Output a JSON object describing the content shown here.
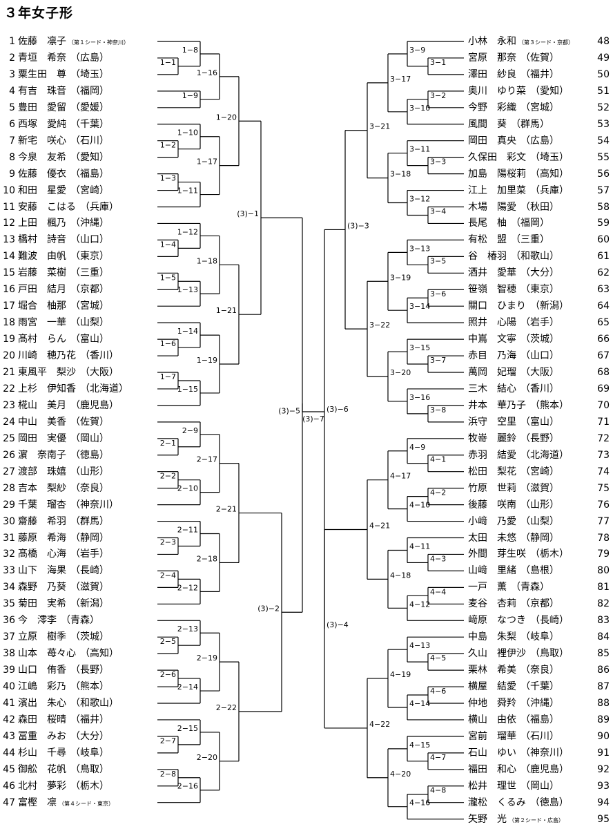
{
  "title": "３年女子形",
  "left": [
    {
      "num": "1",
      "name": "佐藤　凛子",
      "note": "（第１シード・神奈川）"
    },
    {
      "num": "2",
      "name": "青垣　希奈",
      "pref": "（広島）"
    },
    {
      "num": "3",
      "name": "粟生田　尊",
      "pref": "（埼玉）"
    },
    {
      "num": "4",
      "name": "有吉　珠音",
      "pref": "（福岡）"
    },
    {
      "num": "5",
      "name": "豊田　愛留",
      "pref": "（愛媛）"
    },
    {
      "num": "6",
      "name": "西塚　愛純",
      "pref": "（千葉）"
    },
    {
      "num": "7",
      "name": "新宅　咲心",
      "pref": "（石川）"
    },
    {
      "num": "8",
      "name": "今泉　友希",
      "pref": "（愛知）"
    },
    {
      "num": "9",
      "name": "佐藤　優衣",
      "pref": "（福島）"
    },
    {
      "num": "10",
      "name": "和田　星愛",
      "pref": "（宮崎）"
    },
    {
      "num": "11",
      "name": "安藤　こはる",
      "pref": "（兵庫）"
    },
    {
      "num": "12",
      "name": "上田　楓乃",
      "pref": "（沖縄）"
    },
    {
      "num": "13",
      "name": "橋村　詩音",
      "pref": "（山口）"
    },
    {
      "num": "14",
      "name": "難波　由帆",
      "pref": "（東京）"
    },
    {
      "num": "15",
      "name": "岩藤　菜樹",
      "pref": "（三重）"
    },
    {
      "num": "16",
      "name": "戸田　結月",
      "pref": "（京都）"
    },
    {
      "num": "17",
      "name": "堀合　柚那",
      "pref": "（宮城）"
    },
    {
      "num": "18",
      "name": "雨宮　一華",
      "pref": "（山梨）"
    },
    {
      "num": "19",
      "name": "髙村　らん",
      "pref": "（富山）"
    },
    {
      "num": "20",
      "name": "川崎　穂乃花",
      "pref": "（香川）"
    },
    {
      "num": "21",
      "name": "東風平　梨沙",
      "pref": "（大阪）"
    },
    {
      "num": "22",
      "name": "上杉　伊知香",
      "pref": "（北海道）"
    },
    {
      "num": "23",
      "name": "椛山　美月",
      "pref": "（鹿児島）"
    },
    {
      "num": "24",
      "name": "中山　美香",
      "pref": "（佐賀）"
    },
    {
      "num": "25",
      "name": "岡田　実優",
      "pref": "（岡山）"
    },
    {
      "num": "26",
      "name": "濵　奈南子",
      "pref": "（徳島）"
    },
    {
      "num": "27",
      "name": "渡部　珠嬉",
      "pref": "（山形）"
    },
    {
      "num": "28",
      "name": "吉本　梨紗",
      "pref": "（奈良）"
    },
    {
      "num": "29",
      "name": "千葉　瑠杏",
      "pref": "（神奈川）"
    },
    {
      "num": "30",
      "name": "齋藤　希羽",
      "pref": "（群馬）"
    },
    {
      "num": "31",
      "name": "藤原　希海",
      "pref": "（静岡）"
    },
    {
      "num": "32",
      "name": "髙橋　心海",
      "pref": "（岩手）"
    },
    {
      "num": "33",
      "name": "山下　海果",
      "pref": "（長崎）"
    },
    {
      "num": "34",
      "name": "森野　乃葵",
      "pref": "（滋賀）"
    },
    {
      "num": "35",
      "name": "菊田　実希",
      "pref": "（新潟）"
    },
    {
      "num": "36",
      "name": "今　澪李",
      "pref": "（青森）"
    },
    {
      "num": "37",
      "name": "立原　樹季",
      "pref": "（茨城）"
    },
    {
      "num": "38",
      "name": "山本　苺々心",
      "pref": "（高知）"
    },
    {
      "num": "39",
      "name": "山口　侑香",
      "pref": "（長野）"
    },
    {
      "num": "40",
      "name": "江嶋　彩乃",
      "pref": "（熊本）"
    },
    {
      "num": "41",
      "name": "濱出　朱心",
      "pref": "（和歌山）"
    },
    {
      "num": "42",
      "name": "森田　桜晴",
      "pref": "（福井）"
    },
    {
      "num": "43",
      "name": "冨重　みお",
      "pref": "（大分）"
    },
    {
      "num": "44",
      "name": "杉山　千尋",
      "pref": "（岐阜）"
    },
    {
      "num": "45",
      "name": "御舩　花帆",
      "pref": "（鳥取）"
    },
    {
      "num": "46",
      "name": "北村　夢彩",
      "pref": "（栃木）"
    },
    {
      "num": "47",
      "name": "富樫　凛",
      "note": "（第４シード・東京）"
    }
  ],
  "right": [
    {
      "num": "48",
      "name": "小林　永和",
      "note": "（第３シード・京都）"
    },
    {
      "num": "49",
      "name": "宮原　那奈",
      "pref": "（佐賀）"
    },
    {
      "num": "50",
      "name": "澤田　紗良",
      "pref": "（福井）"
    },
    {
      "num": "51",
      "name": "奥川　ゆり菜",
      "pref": "（愛知）"
    },
    {
      "num": "52",
      "name": "今野　彩織",
      "pref": "（宮城）"
    },
    {
      "num": "53",
      "name": "風間　葵",
      "pref": "（群馬）"
    },
    {
      "num": "54",
      "name": "岡田　真央",
      "pref": "（広島）"
    },
    {
      "num": "55",
      "name": "久保田　彩文",
      "pref": "（埼玉）"
    },
    {
      "num": "56",
      "name": "加島　陽桜莉",
      "pref": "（高知）"
    },
    {
      "num": "57",
      "name": "江上　加里菜",
      "pref": "（兵庫）"
    },
    {
      "num": "58",
      "name": "木場　陽愛",
      "pref": "（秋田）"
    },
    {
      "num": "59",
      "name": "長尾　柚",
      "pref": "（福岡）"
    },
    {
      "num": "60",
      "name": "有松　盟",
      "pref": "（三重）"
    },
    {
      "num": "61",
      "name": "谷　椿羽",
      "pref": "（和歌山）"
    },
    {
      "num": "62",
      "name": "酒井　愛華",
      "pref": "（大分）"
    },
    {
      "num": "63",
      "name": "笹嶺　智穂",
      "pref": "（東京）"
    },
    {
      "num": "64",
      "name": "關口　ひまり",
      "pref": "（新潟）"
    },
    {
      "num": "65",
      "name": "照井　心陽",
      "pref": "（岩手）"
    },
    {
      "num": "66",
      "name": "中嶌　文寧",
      "pref": "（茨城）"
    },
    {
      "num": "67",
      "name": "赤目　乃海",
      "pref": "（山口）"
    },
    {
      "num": "68",
      "name": "萬岡　妃瑠",
      "pref": "（大阪）"
    },
    {
      "num": "69",
      "name": "三木　結心",
      "pref": "（香川）"
    },
    {
      "num": "70",
      "name": "井本　華乃子",
      "pref": "（熊本）"
    },
    {
      "num": "71",
      "name": "浜守　空里",
      "pref": "（富山）"
    },
    {
      "num": "72",
      "name": "牧嵜　麗鈴",
      "pref": "（長野）"
    },
    {
      "num": "73",
      "name": "赤羽　結愛",
      "pref": "（北海道）"
    },
    {
      "num": "74",
      "name": "松田　梨花",
      "pref": "（宮崎）"
    },
    {
      "num": "75",
      "name": "竹原　世莉",
      "pref": "（滋賀）"
    },
    {
      "num": "76",
      "name": "後藤　咲南",
      "pref": "（山形）"
    },
    {
      "num": "77",
      "name": "小﨑　乃愛",
      "pref": "（山梨）"
    },
    {
      "num": "78",
      "name": "太田　未悠",
      "pref": "（静岡）"
    },
    {
      "num": "79",
      "name": "外間　芽生咲",
      "pref": "（栃木）"
    },
    {
      "num": "80",
      "name": "山﨑　里緒",
      "pref": "（島根）"
    },
    {
      "num": "81",
      "name": "一戸　薫",
      "pref": "（青森）"
    },
    {
      "num": "82",
      "name": "麦谷　杏莉",
      "pref": "（京都）"
    },
    {
      "num": "83",
      "name": "﨑原　なつき",
      "pref": "（長崎）"
    },
    {
      "num": "84",
      "name": "中島　朱梨",
      "pref": "（岐阜）"
    },
    {
      "num": "85",
      "name": "久山　裡伊沙",
      "pref": "（鳥取）"
    },
    {
      "num": "86",
      "name": "栗林　希美",
      "pref": "（奈良）"
    },
    {
      "num": "87",
      "name": "横屋　結愛",
      "pref": "（千葉）"
    },
    {
      "num": "88",
      "name": "仲地　舜羚",
      "pref": "（沖縄）"
    },
    {
      "num": "89",
      "name": "横山　由依",
      "pref": "（福島）"
    },
    {
      "num": "90",
      "name": "宮前　瑠華",
      "pref": "（石川）"
    },
    {
      "num": "91",
      "name": "石山　ゆい",
      "pref": "（神奈川）"
    },
    {
      "num": "92",
      "name": "福田　和心",
      "pref": "（鹿児島）"
    },
    {
      "num": "93",
      "name": "松井　理世",
      "pref": "（岡山）"
    },
    {
      "num": "94",
      "name": "瀧松　くるみ",
      "pref": "（徳島）"
    },
    {
      "num": "95",
      "name": "矢野　光",
      "note": "（第２シード・広島）"
    }
  ],
  "labels": {
    "l1_1": "1−1",
    "l1_2": "1−2",
    "l1_3": "1−3",
    "l1_4": "1−4",
    "l1_5": "1−5",
    "l1_6": "1−6",
    "l1_7": "1−7",
    "l1_8": "1−8",
    "l1_9": "1−9",
    "l1_10": "1−10",
    "l1_11": "1−11",
    "l1_12": "1−12",
    "l1_13": "1−13",
    "l1_14": "1−14",
    "l1_15": "1−15",
    "l1_16": "1−16",
    "l1_17": "1−17",
    "l1_18": "1−18",
    "l1_19": "1−19",
    "l1_20": "1−20",
    "l1_21": "1−21",
    "l2_1": "2−1",
    "l2_2": "2−2",
    "l2_3": "2−3",
    "l2_4": "2−4",
    "l2_5": "2−5",
    "l2_6": "2−6",
    "l2_7": "2−7",
    "l2_8": "2−8",
    "l2_9": "2−9",
    "l2_10": "2−10",
    "l2_11": "2−11",
    "l2_12": "2−12",
    "l2_13": "2−13",
    "l2_14": "2−14",
    "l2_15": "2−15",
    "l2_16": "2−16",
    "l2_17": "2−17",
    "l2_18": "2−18",
    "l2_19": "2−19",
    "l2_20": "2−20",
    "l2_21": "2−21",
    "l2_22": "2−22",
    "r3_1": "3−1",
    "r3_2": "3−2",
    "r3_3": "3−3",
    "r3_4": "3−4",
    "r3_5": "3−5",
    "r3_6": "3−6",
    "r3_7": "3−7",
    "r3_8": "3−8",
    "r3_9": "3−9",
    "r3_10": "3−10",
    "r3_11": "3−11",
    "r3_12": "3−12",
    "r3_13": "3−13",
    "r3_14": "3−14",
    "r3_15": "3−15",
    "r3_16": "3−16",
    "r3_17": "3−17",
    "r3_18": "3−18",
    "r3_19": "3−19",
    "r3_20": "3−20",
    "r3_21": "3−21",
    "r3_22": "3−22",
    "r4_1": "4−1",
    "r4_2": "4−2",
    "r4_3": "4−3",
    "r4_4": "4−4",
    "r4_5": "4−5",
    "r4_6": "4−6",
    "r4_7": "4−7",
    "r4_8": "4−8",
    "r4_9": "4−9",
    "r4_10": "4−10",
    "r4_11": "4−11",
    "r4_12": "4−12",
    "r4_13": "4−13",
    "r4_14": "4−14",
    "r4_15": "4−15",
    "r4_16": "4−16",
    "r4_17": "4−17",
    "r4_18": "4−18",
    "r4_19": "4−19",
    "r4_20": "4−20",
    "r4_21": "4−21",
    "r4_22": "4−22",
    "f1": "(3)−1",
    "f2": "(3)−2",
    "f3": "(3)−3",
    "f4": "(3)−4",
    "f5": "(3)−5",
    "f6": "(3)−6",
    "f7": "(3)−7"
  }
}
